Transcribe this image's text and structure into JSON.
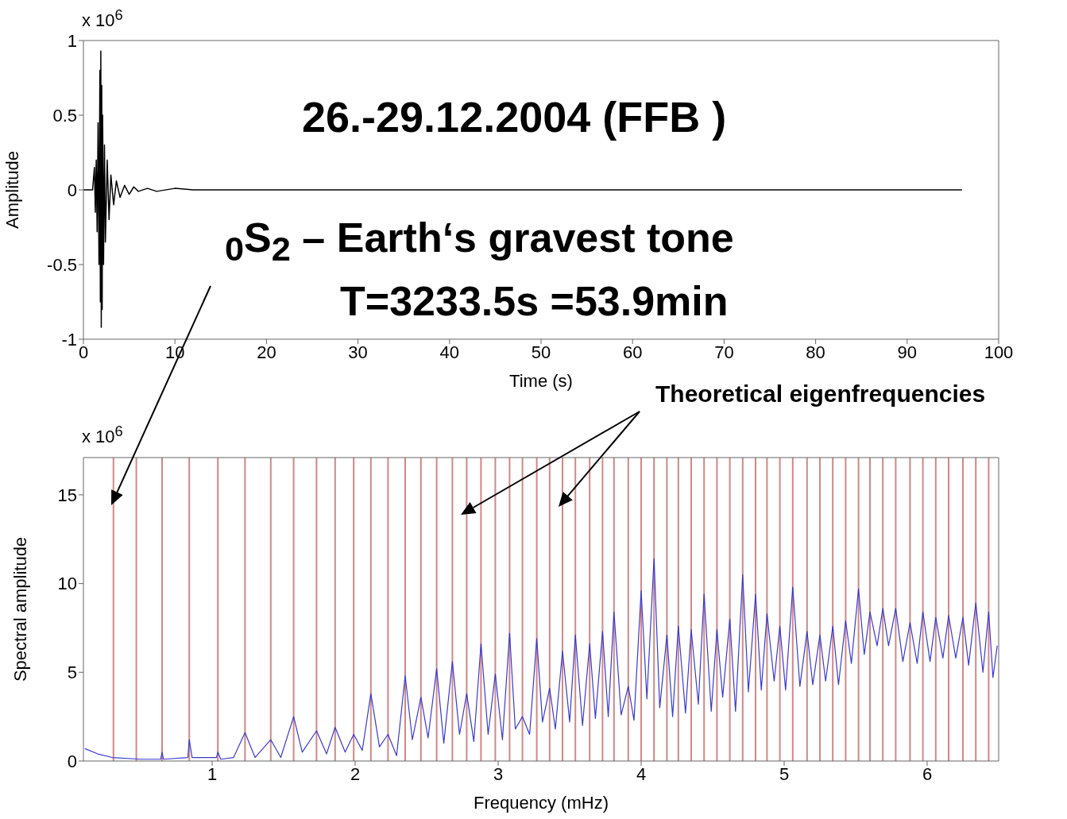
{
  "chart_data": [
    {
      "type": "line",
      "title": "26.-29.12.2004 (FFB )",
      "xlabel": "Time (s)",
      "ylabel": "Amplitude",
      "annotations": [
        "x 10$^{6}$",
        "$_{0}$S$_{2}$ – Earth‘s gravest tone",
        "T=3233.5s =53.9min"
      ],
      "xlim": [
        0,
        100
      ],
      "xticks": [
        0,
        10,
        20,
        30,
        40,
        50,
        60,
        70,
        80,
        90,
        100
      ],
      "ylim": [
        -1,
        1
      ],
      "yticks": [
        -1,
        -0.5,
        0,
        0.5,
        1
      ],
      "color": "#000000",
      "x": [
        0,
        1.0,
        1.2,
        1.3,
        1.4,
        1.5,
        1.6,
        1.7,
        1.8,
        1.85,
        1.9,
        1.95,
        2.0,
        2.05,
        2.1,
        2.2,
        2.3,
        2.4,
        2.6,
        2.8,
        3.0,
        3.3,
        3.6,
        4,
        4.5,
        5,
        5.5,
        6,
        7,
        8,
        10,
        12,
        96
      ],
      "values": [
        0,
        0,
        0.15,
        -0.15,
        0.2,
        -0.28,
        0.45,
        -0.5,
        0.8,
        -0.75,
        0.93,
        -0.92,
        0.7,
        -0.8,
        0.5,
        -0.5,
        0.3,
        -0.35,
        0.2,
        -0.2,
        0.1,
        -0.1,
        0.06,
        -0.05,
        0.03,
        -0.03,
        0.02,
        -0.01,
        0.01,
        -0.01,
        0.01,
        0,
        0
      ]
    },
    {
      "type": "line",
      "xlabel": "Frequency (mHz)",
      "ylabel": "Spectral amplitude",
      "annotations": [
        "x 10$^{6}$",
        "Theoretical eigenfrequencies"
      ],
      "xlim": [
        0.1,
        6.5
      ],
      "xticks": [
        1,
        2,
        3,
        4,
        5,
        6
      ],
      "ylim": [
        0,
        17.1
      ],
      "yticks": [
        0,
        5,
        10,
        15
      ],
      "color": "#3a3ad0",
      "x": [
        0.11,
        0.2,
        0.3,
        0.5,
        0.64,
        0.65,
        0.66,
        0.83,
        0.84,
        0.86,
        1.03,
        1.04,
        1.06,
        1.15,
        1.23,
        1.3,
        1.41,
        1.48,
        1.57,
        1.63,
        1.73,
        1.8,
        1.86,
        1.93,
        1.99,
        2.05,
        2.11,
        2.17,
        2.23,
        2.29,
        2.35,
        2.4,
        2.46,
        2.51,
        2.57,
        2.62,
        2.68,
        2.73,
        2.78,
        2.83,
        2.88,
        2.93,
        2.98,
        3.03,
        3.08,
        3.12,
        3.17,
        3.22,
        3.27,
        3.31,
        3.36,
        3.4,
        3.45,
        3.5,
        3.54,
        3.59,
        3.64,
        3.68,
        3.73,
        3.77,
        3.81,
        3.86,
        3.91,
        3.95,
        4.0,
        4.04,
        4.09,
        4.13,
        4.18,
        4.22,
        4.26,
        4.31,
        4.35,
        4.4,
        4.44,
        4.49,
        4.53,
        4.57,
        4.62,
        4.66,
        4.71,
        4.75,
        4.8,
        4.84,
        4.88,
        4.93,
        4.97,
        5.01,
        5.06,
        5.11,
        5.16,
        5.2,
        5.25,
        5.29,
        5.34,
        5.38,
        5.43,
        5.47,
        5.52,
        5.56,
        5.6,
        5.65,
        5.69,
        5.73,
        5.78,
        5.83,
        5.88,
        5.93,
        5.97,
        6.02,
        6.06,
        6.11,
        6.15,
        6.2,
        6.25,
        6.29,
        6.34,
        6.39,
        6.43,
        6.46,
        6.49
      ],
      "values": [
        0.7,
        0.4,
        0.2,
        0.1,
        0.1,
        0.5,
        0.1,
        0.2,
        1.2,
        0.2,
        0.2,
        0.5,
        0.1,
        0.2,
        1.6,
        0.2,
        1.2,
        0.2,
        2.5,
        0.5,
        1.7,
        0.4,
        1.9,
        0.5,
        1.5,
        0.6,
        3.8,
        0.8,
        1.5,
        0.3,
        4.8,
        1.2,
        3.6,
        1.3,
        5.2,
        1.0,
        5.6,
        1.5,
        3.8,
        1.1,
        6.6,
        1.5,
        4.9,
        1.2,
        7.2,
        1.8,
        2.5,
        1.5,
        6.9,
        2.2,
        4.1,
        1.8,
        6.2,
        2.2,
        7.1,
        2.0,
        6.6,
        2.4,
        7.3,
        2.5,
        8.4,
        2.6,
        4.2,
        2.3,
        9.6,
        3.5,
        11.4,
        3.0,
        7.1,
        2.5,
        7.6,
        2.7,
        7.4,
        3.2,
        9.4,
        2.8,
        7.4,
        3.6,
        8.0,
        2.8,
        10.5,
        3.9,
        9.4,
        4.0,
        8.3,
        4.5,
        7.6,
        4.0,
        9.8,
        4.2,
        7.3,
        4.3,
        7.1,
        4.5,
        7.6,
        4.3,
        7.9,
        5.5,
        9.7,
        6.0,
        8.4,
        6.5,
        8.6,
        6.5,
        8.6,
        5.6,
        7.8,
        5.5,
        8.4,
        5.6,
        8.1,
        5.8,
        8.2,
        5.8,
        8.1,
        5.4,
        8.9,
        5.0,
        8.4,
        4.7,
        6.5
      ],
      "ref_lines": [
        {
          "axis": "x",
          "value": 0.31,
          "color": "#d08888"
        },
        {
          "axis": "x",
          "value": 0.47,
          "color": "#d08888"
        },
        {
          "axis": "x",
          "value": 0.65,
          "color": "#d08888"
        },
        {
          "axis": "x",
          "value": 0.84,
          "color": "#d08888"
        },
        {
          "axis": "x",
          "value": 1.04,
          "color": "#d08888"
        },
        {
          "axis": "x",
          "value": 1.23,
          "color": "#d08888"
        },
        {
          "axis": "x",
          "value": 1.41,
          "color": "#d08888"
        },
        {
          "axis": "x",
          "value": 1.57,
          "color": "#d08888"
        },
        {
          "axis": "x",
          "value": 1.73,
          "color": "#d08888"
        },
        {
          "axis": "x",
          "value": 1.86,
          "color": "#d08888"
        },
        {
          "axis": "x",
          "value": 1.99,
          "color": "#d08888"
        },
        {
          "axis": "x",
          "value": 2.11,
          "color": "#d08888"
        },
        {
          "axis": "x",
          "value": 2.23,
          "color": "#d08888"
        },
        {
          "axis": "x",
          "value": 2.35,
          "color": "#d08888"
        },
        {
          "axis": "x",
          "value": 2.46,
          "color": "#d08888"
        },
        {
          "axis": "x",
          "value": 2.57,
          "color": "#d08888"
        },
        {
          "axis": "x",
          "value": 2.68,
          "color": "#d08888"
        },
        {
          "axis": "x",
          "value": 2.78,
          "color": "#d08888"
        },
        {
          "axis": "x",
          "value": 2.88,
          "color": "#d08888"
        },
        {
          "axis": "x",
          "value": 2.98,
          "color": "#d08888"
        },
        {
          "axis": "x",
          "value": 3.08,
          "color": "#d08888"
        },
        {
          "axis": "x",
          "value": 3.17,
          "color": "#d08888"
        },
        {
          "axis": "x",
          "value": 3.27,
          "color": "#d08888"
        },
        {
          "axis": "x",
          "value": 3.36,
          "color": "#d08888"
        },
        {
          "axis": "x",
          "value": 3.45,
          "color": "#d08888"
        },
        {
          "axis": "x",
          "value": 3.54,
          "color": "#d08888"
        },
        {
          "axis": "x",
          "value": 3.64,
          "color": "#d08888"
        },
        {
          "axis": "x",
          "value": 3.73,
          "color": "#d08888"
        },
        {
          "axis": "x",
          "value": 3.81,
          "color": "#d08888"
        },
        {
          "axis": "x",
          "value": 3.91,
          "color": "#d08888"
        },
        {
          "axis": "x",
          "value": 4.0,
          "color": "#d08888"
        },
        {
          "axis": "x",
          "value": 4.09,
          "color": "#d08888"
        },
        {
          "axis": "x",
          "value": 4.18,
          "color": "#d08888"
        },
        {
          "axis": "x",
          "value": 4.26,
          "color": "#d08888"
        },
        {
          "axis": "x",
          "value": 4.35,
          "color": "#d08888"
        },
        {
          "axis": "x",
          "value": 4.44,
          "color": "#d08888"
        },
        {
          "axis": "x",
          "value": 4.53,
          "color": "#d08888"
        },
        {
          "axis": "x",
          "value": 4.62,
          "color": "#d08888"
        },
        {
          "axis": "x",
          "value": 4.71,
          "color": "#d08888"
        },
        {
          "axis": "x",
          "value": 4.8,
          "color": "#d08888"
        },
        {
          "axis": "x",
          "value": 4.88,
          "color": "#d08888"
        },
        {
          "axis": "x",
          "value": 4.97,
          "color": "#d08888"
        },
        {
          "axis": "x",
          "value": 5.06,
          "color": "#d08888"
        },
        {
          "axis": "x",
          "value": 5.16,
          "color": "#d08888"
        },
        {
          "axis": "x",
          "value": 5.25,
          "color": "#d08888"
        },
        {
          "axis": "x",
          "value": 5.34,
          "color": "#d08888"
        },
        {
          "axis": "x",
          "value": 5.43,
          "color": "#d08888"
        },
        {
          "axis": "x",
          "value": 5.52,
          "color": "#d08888"
        },
        {
          "axis": "x",
          "value": 5.6,
          "color": "#d08888"
        },
        {
          "axis": "x",
          "value": 5.69,
          "color": "#d08888"
        },
        {
          "axis": "x",
          "value": 5.78,
          "color": "#d08888"
        },
        {
          "axis": "x",
          "value": 5.88,
          "color": "#d08888"
        },
        {
          "axis": "x",
          "value": 5.97,
          "color": "#d08888"
        },
        {
          "axis": "x",
          "value": 6.06,
          "color": "#d08888"
        },
        {
          "axis": "x",
          "value": 6.15,
          "color": "#d08888"
        },
        {
          "axis": "x",
          "value": 6.25,
          "color": "#d08888"
        },
        {
          "axis": "x",
          "value": 6.34,
          "color": "#d08888"
        },
        {
          "axis": "x",
          "value": 6.43,
          "color": "#d08888"
        }
      ]
    }
  ]
}
